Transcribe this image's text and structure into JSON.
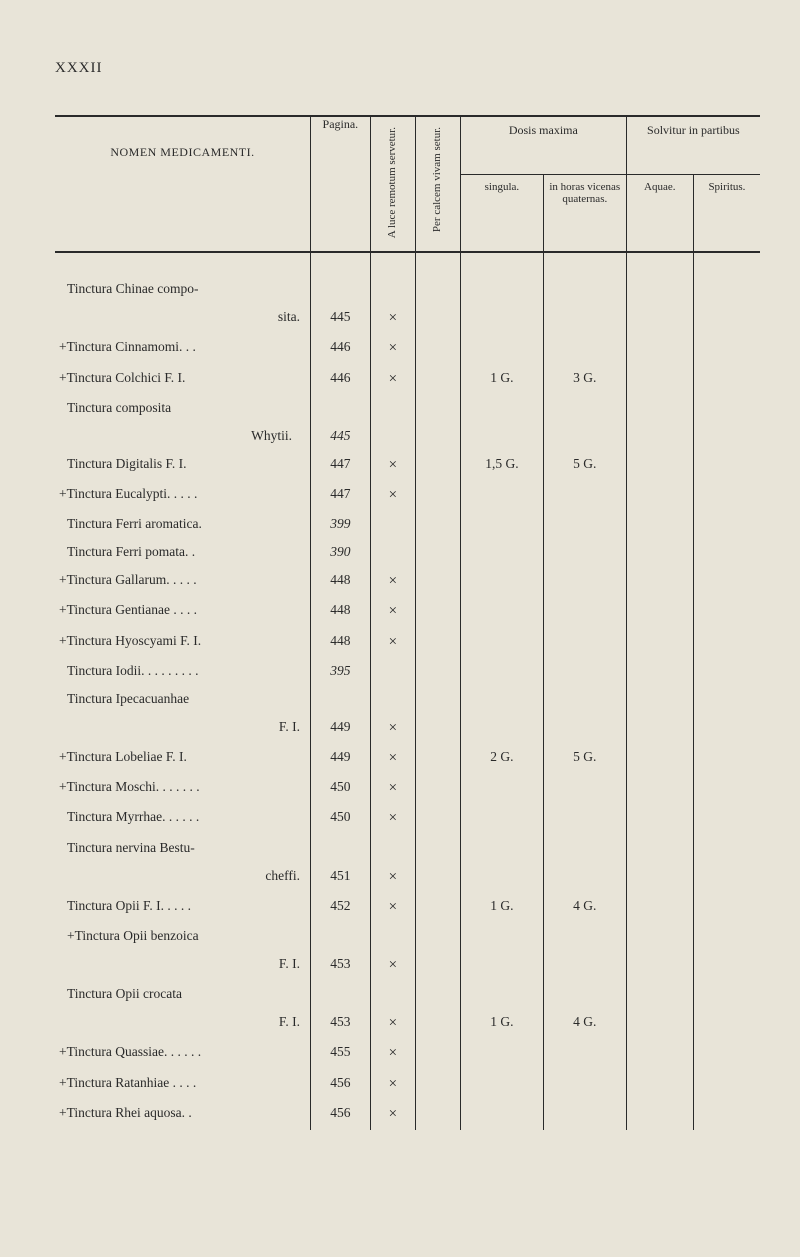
{
  "page_number": "XXXII",
  "headers": {
    "nomen": "NOMEN MEDICAMENTI.",
    "pagina": "Pagina.",
    "luce": "A luce remotum servetur.",
    "calcem": "Per calcem vivam setur.",
    "dosis": "Dosis maxima",
    "solvitur": "Solvitur in partibus",
    "singula": "singula.",
    "horas": "in horas vicenas quaternas.",
    "aquae": "Aquae.",
    "spiritus": "Spiritus."
  },
  "rows": [
    {
      "name_a": "Tinctura Chinae compo-",
      "name_b": "sita.",
      "nb_class": "indent-right",
      "pagina": "445",
      "luce": "×",
      "calc": "",
      "sing": "",
      "horas": "",
      "aquae": "",
      "spir": "",
      "split": true
    },
    {
      "name": "+Tinctura Cinnamomi. . .",
      "pagina": "446",
      "luce": "×",
      "calc": "",
      "sing": "",
      "horas": "",
      "aquae": "",
      "spir": ""
    },
    {
      "name": "+Tinctura Colchici F. I.",
      "pagina": "446",
      "luce": "×",
      "calc": "",
      "sing": "1 G.",
      "horas": "3 G.",
      "aquae": "",
      "spir": ""
    },
    {
      "name_a": "Tinctura composita",
      "name_b": "Whytii.",
      "nb_class": "indent-right2",
      "pagina": "445",
      "pagina_italic": true,
      "luce": "",
      "calc": "",
      "sing": "",
      "horas": "",
      "aquae": "",
      "spir": "",
      "split": true
    },
    {
      "name": "Tinctura Digitalis F. I.",
      "pagina": "447",
      "luce": "×",
      "calc": "",
      "sing": "1,5 G.",
      "horas": "5 G.",
      "aquae": "",
      "spir": ""
    },
    {
      "name": "+Tinctura Eucalypti. . . . .",
      "pagina": "447",
      "luce": "×",
      "calc": "",
      "sing": "",
      "horas": "",
      "aquae": "",
      "spir": ""
    },
    {
      "name": "Tinctura Ferri aromatica.",
      "pagina": "399",
      "pagina_italic": true,
      "luce": "",
      "calc": "",
      "sing": "",
      "horas": "",
      "aquae": "",
      "spir": ""
    },
    {
      "name": "Tinctura Ferri pomata. .",
      "pagina": "390",
      "pagina_italic": true,
      "luce": "",
      "calc": "",
      "sing": "",
      "horas": "",
      "aquae": "",
      "spir": ""
    },
    {
      "name": "+Tinctura Gallarum. . . . .",
      "pagina": "448",
      "luce": "×",
      "calc": "",
      "sing": "",
      "horas": "",
      "aquae": "",
      "spir": ""
    },
    {
      "name": "+Tinctura Gentianae . . . .",
      "pagina": "448",
      "luce": "×",
      "calc": "",
      "sing": "",
      "horas": "",
      "aquae": "",
      "spir": ""
    },
    {
      "name": "+Tinctura Hyoscyami F. I.",
      "pagina": "448",
      "luce": "×",
      "calc": "",
      "sing": "",
      "horas": "",
      "aquae": "",
      "spir": ""
    },
    {
      "name": "Tinctura Iodii. . . . . . . . .",
      "pagina": "395",
      "pagina_italic": true,
      "luce": "",
      "calc": "",
      "sing": "",
      "horas": "",
      "aquae": "",
      "spir": ""
    },
    {
      "name_a": "Tinctura Ipecacuanhae",
      "name_b": "F. I.",
      "nb_class": "indent-right",
      "pagina": "449",
      "luce": "×",
      "calc": "",
      "sing": "",
      "horas": "",
      "aquae": "",
      "spir": "",
      "split": true
    },
    {
      "name": "+Tinctura Lobeliae F. I.",
      "pagina": "449",
      "luce": "×",
      "calc": "",
      "sing": "2 G.",
      "horas": "5 G.",
      "aquae": "",
      "spir": ""
    },
    {
      "name": "+Tinctura Moschi. . . . . . .",
      "pagina": "450",
      "luce": "×",
      "calc": "",
      "sing": "",
      "horas": "",
      "aquae": "",
      "spir": ""
    },
    {
      "name": "Tinctura Myrrhae. . . . . .",
      "pagina": "450",
      "luce": "×",
      "calc": "",
      "sing": "",
      "horas": "",
      "aquae": "",
      "spir": ""
    },
    {
      "name_a": "Tinctura nervina Bestu-",
      "name_b": "cheffi.",
      "nb_class": "indent-right",
      "pagina": "451",
      "luce": "×",
      "calc": "",
      "sing": "",
      "horas": "",
      "aquae": "",
      "spir": "",
      "split": true
    },
    {
      "name": "Tinctura Opii F. I. . . . .",
      "pagina": "452",
      "luce": "×",
      "calc": "",
      "sing": "1 G.",
      "horas": "4 G.",
      "aquae": "",
      "spir": ""
    },
    {
      "name_a": "+Tinctura Opii benzoica",
      "name_b": "F. I.",
      "nb_class": "indent-right",
      "pagina": "453",
      "luce": "×",
      "calc": "",
      "sing": "",
      "horas": "",
      "aquae": "",
      "spir": "",
      "split": true
    },
    {
      "name_a": "Tinctura Opii crocata",
      "name_b": "F. I.",
      "nb_class": "indent-right",
      "pagina": "453",
      "luce": "×",
      "calc": "",
      "sing": "1 G.",
      "horas": "4 G.",
      "aquae": "",
      "spir": "",
      "split": true
    },
    {
      "name": "+Tinctura Quassiae. . . . . .",
      "pagina": "455",
      "luce": "×",
      "calc": "",
      "sing": "",
      "horas": "",
      "aquae": "",
      "spir": ""
    },
    {
      "name": "+Tinctura Ratanhiae . . . .",
      "pagina": "456",
      "luce": "×",
      "calc": "",
      "sing": "",
      "horas": "",
      "aquae": "",
      "spir": ""
    },
    {
      "name": "+Tinctura Rhei aquosa. .",
      "pagina": "456",
      "luce": "×",
      "calc": "",
      "sing": "",
      "horas": "",
      "aquae": "",
      "spir": ""
    }
  ]
}
